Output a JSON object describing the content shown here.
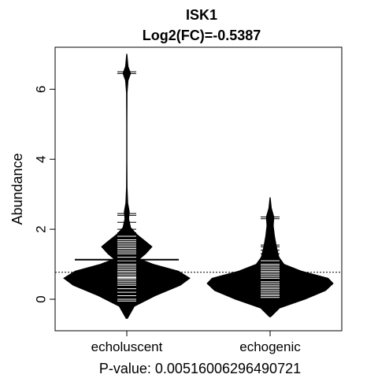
{
  "chart_data": {
    "type": "beanplot",
    "title": "ISK1",
    "subtitle": "Log2(FC)=-0.5387",
    "xlabel": "P-value: 0.00516006296490721",
    "ylabel": "Abundance",
    "categories": [
      "echoluscent",
      "echogenic"
    ],
    "ylim": [
      -0.9,
      7.2
    ],
    "yticks": [
      0,
      2,
      4,
      6
    ],
    "overall_mean": 0.77,
    "groups": [
      {
        "name": "echoluscent",
        "mean": 1.13,
        "range": [
          -0.55,
          7.0
        ],
        "density": [
          [
            -0.55,
            0.01
          ],
          [
            -0.2,
            0.12
          ],
          [
            0.1,
            0.45
          ],
          [
            0.4,
            0.85
          ],
          [
            0.6,
            1.0
          ],
          [
            0.8,
            0.82
          ],
          [
            1.0,
            0.42
          ],
          [
            1.15,
            0.2
          ],
          [
            1.3,
            0.3
          ],
          [
            1.5,
            0.4
          ],
          [
            1.65,
            0.3
          ],
          [
            1.85,
            0.16
          ],
          [
            2.05,
            0.06
          ],
          [
            2.3,
            0.03
          ],
          [
            2.5,
            0.04
          ],
          [
            2.75,
            0.015
          ],
          [
            3.2,
            0.005
          ],
          [
            4.0,
            0.003
          ],
          [
            5.0,
            0.003
          ],
          [
            5.9,
            0.005
          ],
          [
            6.25,
            0.02
          ],
          [
            6.45,
            0.06
          ],
          [
            6.65,
            0.02
          ],
          [
            7.0,
            0.003
          ]
        ],
        "values": [
          6.45,
          6.5,
          2.45,
          2.4,
          2.2,
          2.0,
          1.9,
          1.8,
          1.7,
          1.65,
          1.6,
          1.55,
          1.5,
          1.45,
          1.4,
          1.35,
          1.3,
          1.2,
          1.1,
          1.0,
          0.95,
          0.9,
          0.85,
          0.8,
          0.75,
          0.7,
          0.65,
          0.62,
          0.6,
          0.55,
          0.5,
          0.45,
          0.4,
          0.3,
          0.2,
          0.1,
          0.0,
          -0.05
        ]
      },
      {
        "name": "echogenic",
        "mean": 0.55,
        "range": [
          -0.5,
          2.9
        ],
        "density": [
          [
            -0.5,
            0.01
          ],
          [
            -0.25,
            0.15
          ],
          [
            0.0,
            0.55
          ],
          [
            0.25,
            0.88
          ],
          [
            0.45,
            1.0
          ],
          [
            0.6,
            0.92
          ],
          [
            0.8,
            0.5
          ],
          [
            1.0,
            0.22
          ],
          [
            1.2,
            0.14
          ],
          [
            1.5,
            0.1
          ],
          [
            1.8,
            0.07
          ],
          [
            2.1,
            0.05
          ],
          [
            2.35,
            0.06
          ],
          [
            2.6,
            0.02
          ],
          [
            2.9,
            0.003
          ]
        ],
        "values": [
          2.35,
          2.3,
          1.55,
          1.5,
          1.4,
          1.3,
          1.2,
          1.1,
          1.0,
          0.95,
          0.9,
          0.85,
          0.8,
          0.75,
          0.7,
          0.65,
          0.6,
          0.55,
          0.5,
          0.45,
          0.4,
          0.35,
          0.3,
          0.25,
          0.2,
          0.15,
          0.1,
          0.05
        ]
      }
    ]
  }
}
